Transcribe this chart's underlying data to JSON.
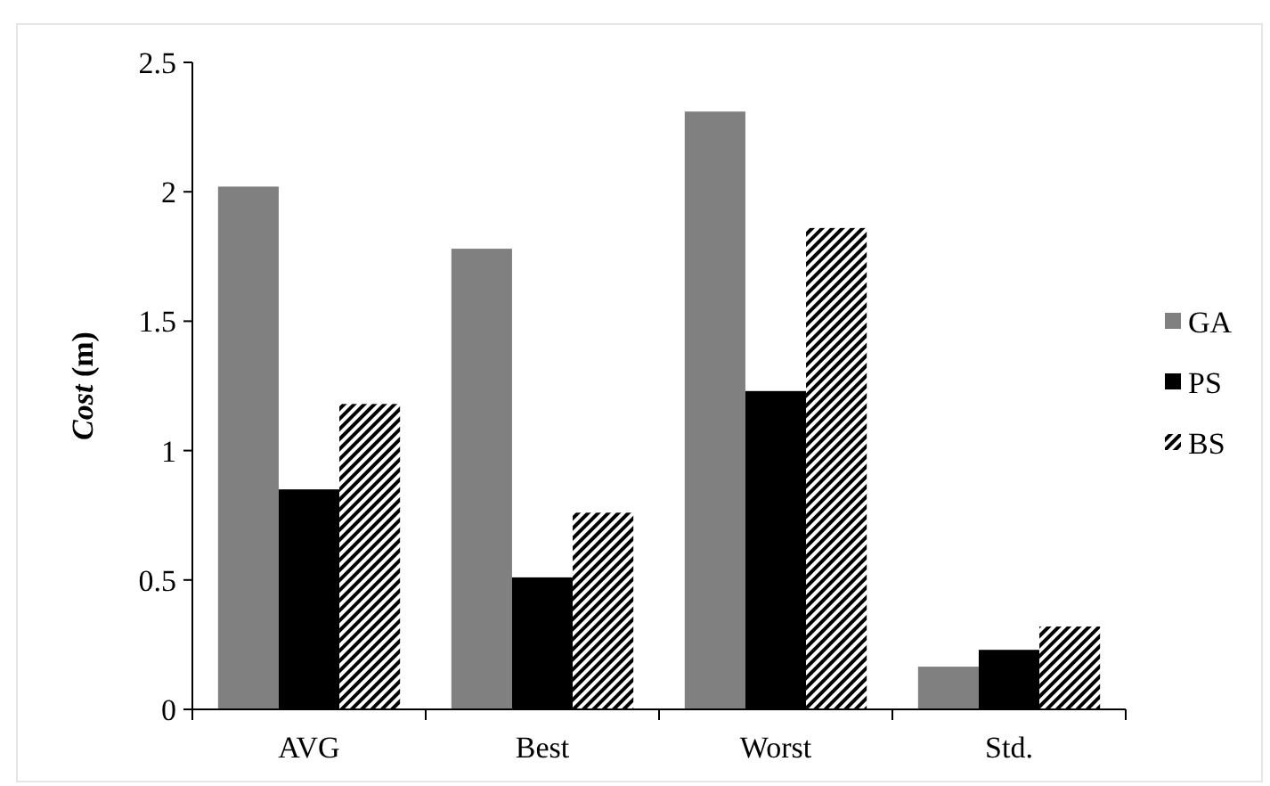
{
  "chart_data": {
    "type": "bar",
    "ylabel": "Cost (m)",
    "categories": [
      "AVG",
      "Best",
      "Worst",
      "Std."
    ],
    "series": [
      {
        "name": "GA",
        "color": "#808080",
        "values": [
          2.02,
          1.78,
          2.31,
          0.165
        ]
      },
      {
        "name": "PS",
        "color": "#000000",
        "values": [
          0.85,
          0.51,
          1.23,
          0.23
        ]
      },
      {
        "name": "BS",
        "color": "#000000",
        "values": [
          1.18,
          0.76,
          1.86,
          0.32
        ]
      }
    ],
    "ylim": [
      0,
      2.5
    ],
    "yticks": [
      0,
      0.5,
      1,
      1.5,
      2,
      2.5
    ],
    "legend": "right",
    "grid": false
  }
}
